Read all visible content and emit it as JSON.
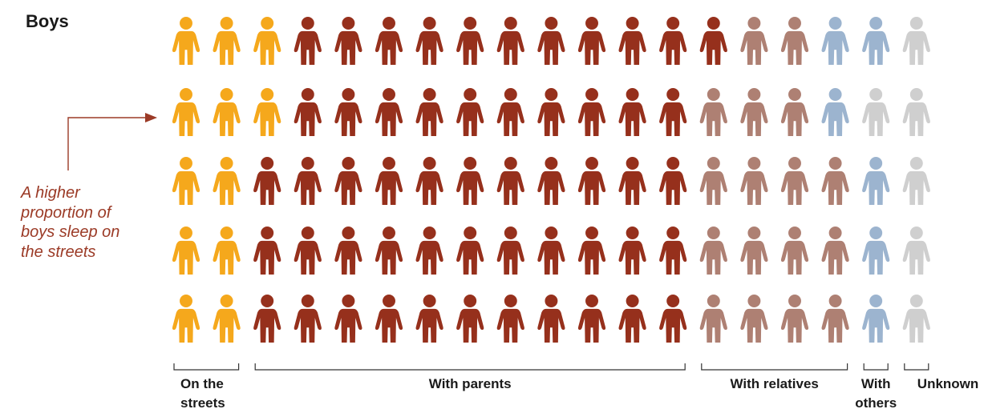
{
  "chart_data": {
    "type": "pictogram",
    "title": "Boys",
    "rows": 5,
    "columns": 19,
    "total_icons": 95,
    "annotation_lines": [
      "A higher",
      "proportion of",
      "boys sleep on",
      "the streets"
    ],
    "categories": [
      {
        "label_lines": [
          "On the",
          "streets"
        ],
        "color": "#f5a81c",
        "counts_per_row": [
          3,
          3,
          2,
          2,
          2
        ]
      },
      {
        "label_lines": [
          "With parents"
        ],
        "color": "#96301c",
        "counts_per_row": [
          11,
          10,
          11,
          11,
          11
        ]
      },
      {
        "label_lines": [
          "With relatives"
        ],
        "color": "#ae8073",
        "counts_per_row": [
          2,
          3,
          4,
          4,
          4
        ]
      },
      {
        "label_lines": [
          "With",
          "others"
        ],
        "color": "#9cb4cf",
        "counts_per_row": [
          2,
          1,
          1,
          1,
          1
        ]
      },
      {
        "label_lines": [
          "Unknown"
        ],
        "color": "#cfcfcf",
        "counts_per_row": [
          1,
          2,
          1,
          1,
          1
        ]
      }
    ]
  },
  "colors": {
    "annotation_text": "#9b3a26",
    "annotation_arrow": "#9b3a26",
    "bracket": "#333333"
  }
}
